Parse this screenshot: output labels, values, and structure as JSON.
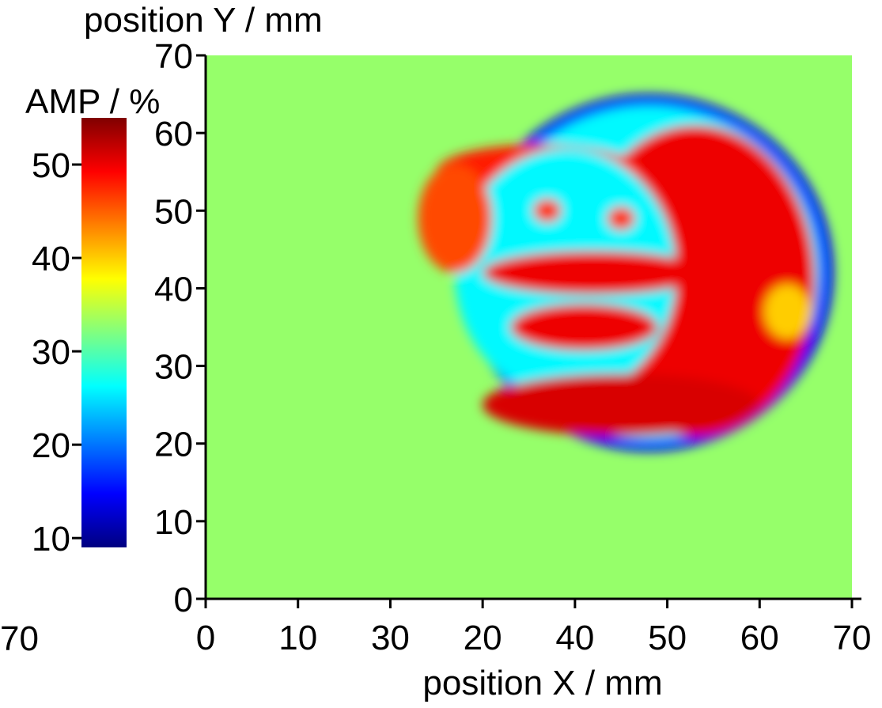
{
  "chart_data": {
    "type": "heatmap",
    "xlabel": "position X / mm",
    "ylabel": "position Y / mm",
    "x_ticks": [
      "0",
      "10",
      "30",
      "20",
      "40",
      "50",
      "60",
      "70"
    ],
    "x_stray_label": "70",
    "y_ticks": [
      "0",
      "10",
      "20",
      "30",
      "40",
      "50",
      "60",
      "70"
    ],
    "xlim": [
      0,
      70
    ],
    "ylim": [
      0,
      70
    ],
    "colorbar": {
      "title": "AMP / %",
      "ticks": [
        "10",
        "20",
        "30",
        "40",
        "50"
      ],
      "range": [
        9,
        55
      ],
      "colors": [
        "#000080",
        "#0000ff",
        "#0080ff",
        "#00ffff",
        "#80ff80",
        "#ffff00",
        "#ff8000",
        "#ff0000",
        "#800000"
      ]
    },
    "background_amp": 33,
    "regions": [
      {
        "label": "outer dark ring",
        "shape": "ellipse",
        "cx": 48,
        "cy": 42,
        "rx": 20,
        "ry": 23,
        "amp": 15
      },
      {
        "label": "light blue ring",
        "shape": "ellipse",
        "cx": 48,
        "cy": 42,
        "rx": 18.5,
        "ry": 21.5,
        "amp": 26
      },
      {
        "label": "right crescent",
        "shape": "ellipse",
        "cx": 53,
        "cy": 41,
        "rx": 13,
        "ry": 20,
        "amp": 50
      },
      {
        "label": "upper band",
        "shape": "ellipse",
        "cx": 36,
        "cy": 55,
        "rx": 11,
        "ry": 3.5,
        "amp": 48
      },
      {
        "label": "inner face",
        "shape": "ellipse",
        "cx": 39,
        "cy": 42,
        "rx": 12,
        "ry": 16,
        "amp": 26
      },
      {
        "label": "left patch",
        "shape": "ellipse",
        "cx": 27,
        "cy": 49,
        "rx": 4,
        "ry": 7,
        "amp": 46
      },
      {
        "label": "horizontal bar",
        "shape": "ellipse",
        "cx": 42,
        "cy": 42,
        "rx": 12,
        "ry": 2.8,
        "amp": 50
      },
      {
        "label": "lower bar",
        "shape": "ellipse",
        "cx": 41,
        "cy": 35,
        "rx": 8,
        "ry": 3,
        "amp": 50
      },
      {
        "label": "bottom arc",
        "shape": "ellipse",
        "cx": 45,
        "cy": 25,
        "rx": 15,
        "ry": 4,
        "amp": 51
      },
      {
        "label": "right yellow spot",
        "shape": "ellipse",
        "cx": 63,
        "cy": 37,
        "rx": 2.5,
        "ry": 3.5,
        "amp": 40
      },
      {
        "label": "eye left",
        "shape": "ellipse",
        "cx": 37,
        "cy": 50,
        "rx": 1.5,
        "ry": 1.5,
        "amp": 47
      },
      {
        "label": "eye right",
        "shape": "ellipse",
        "cx": 45,
        "cy": 49,
        "rx": 1.5,
        "ry": 1.5,
        "amp": 47
      }
    ]
  }
}
